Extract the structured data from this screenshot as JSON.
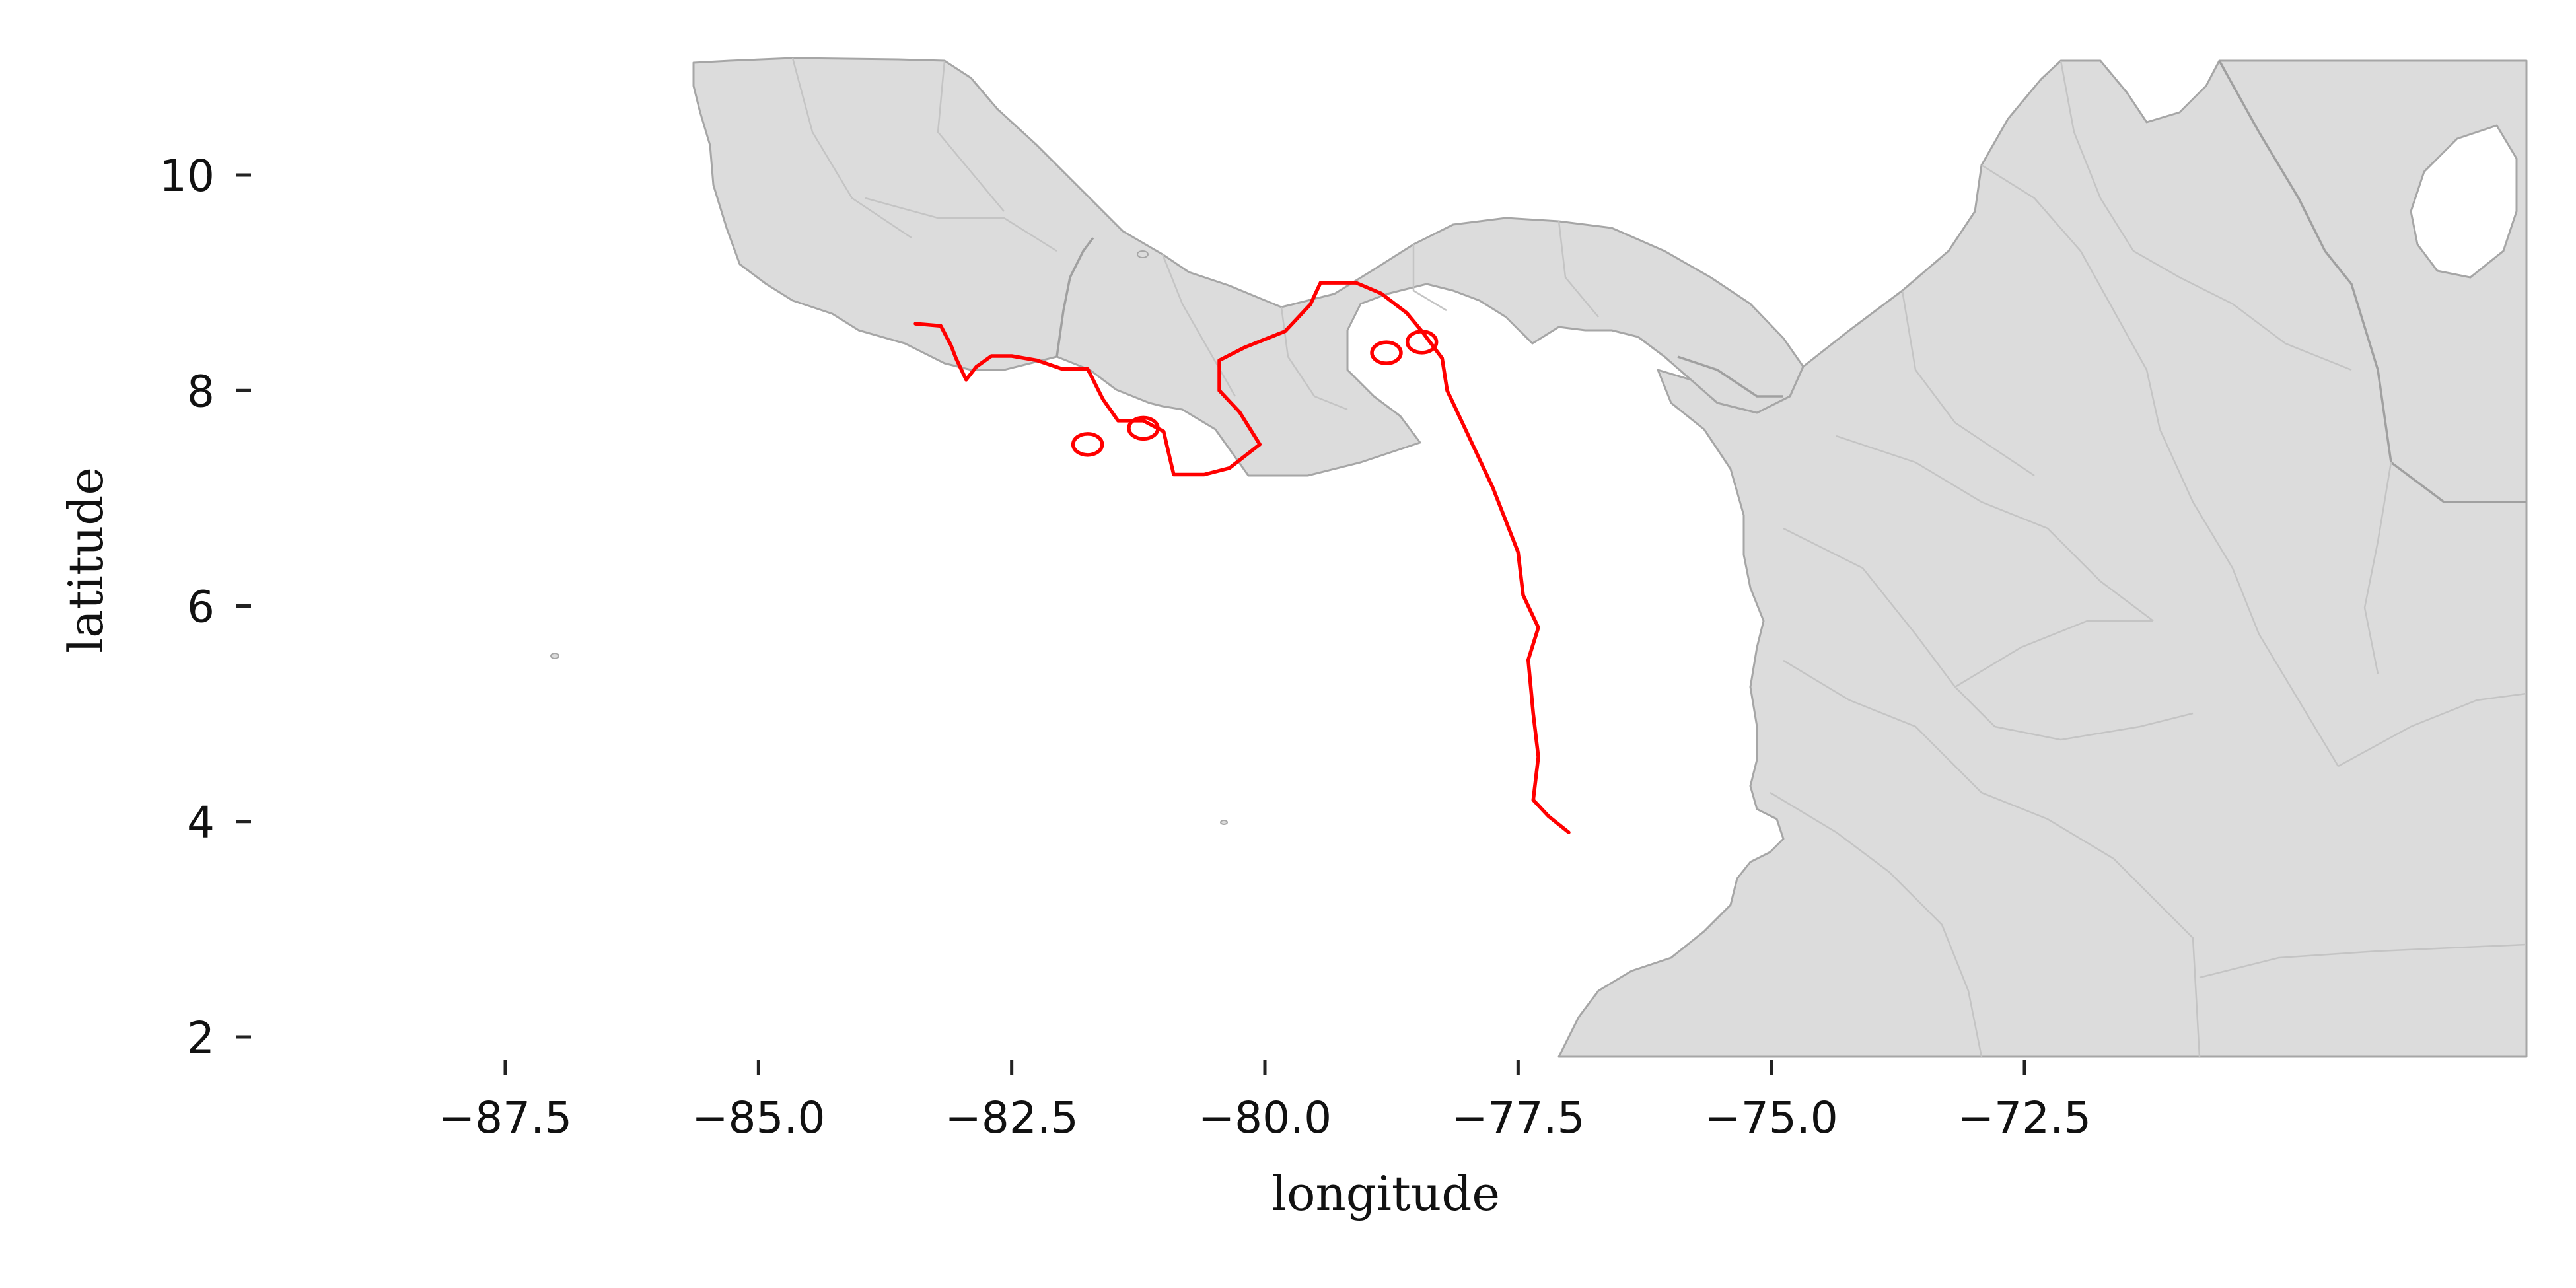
{
  "chart_data": {
    "type": "map",
    "xlabel": "longitude",
    "ylabel": "latitude",
    "xlim": [
      -89.5,
      -71.3
    ],
    "ylim": [
      1.8,
      11.1
    ],
    "x_ticks": [
      -87.5,
      -85.0,
      -82.5,
      -80.0,
      -77.5,
      -75.0,
      -72.5
    ],
    "x_tick_labels": [
      "−87.5",
      "−85.0",
      "−82.5",
      "−80.0",
      "−77.5",
      "−75.0",
      "−72.5"
    ],
    "y_ticks": [
      2,
      4,
      6,
      8,
      10
    ],
    "y_tick_labels": [
      "2",
      "4",
      "6",
      "8",
      "10"
    ],
    "grid": false,
    "basemap": "land with administrative borders",
    "highlight": {
      "type": "outline",
      "color": "#ff0000",
      "path_lonlat": [
        [
          -83.45,
          8.62
        ],
        [
          -83.2,
          8.6
        ],
        [
          -83.1,
          8.42
        ],
        [
          -83.05,
          8.3
        ],
        [
          -82.95,
          8.1
        ],
        [
          -82.85,
          8.22
        ],
        [
          -82.7,
          8.32
        ],
        [
          -82.5,
          8.32
        ],
        [
          -82.25,
          8.28
        ],
        [
          -82.0,
          8.2
        ],
        [
          -81.75,
          8.2
        ],
        [
          -81.6,
          7.92
        ],
        [
          -81.45,
          7.72
        ],
        [
          -81.2,
          7.72
        ],
        [
          -81.0,
          7.62
        ],
        [
          -80.95,
          7.42
        ],
        [
          -80.9,
          7.22
        ],
        [
          -80.6,
          7.22
        ],
        [
          -80.35,
          7.28
        ],
        [
          -80.05,
          7.5
        ],
        [
          -80.25,
          7.8
        ],
        [
          -80.45,
          8.0
        ],
        [
          -80.45,
          8.28
        ],
        [
          -80.2,
          8.4
        ],
        [
          -79.8,
          8.55
        ],
        [
          -79.55,
          8.8
        ],
        [
          -79.45,
          9.0
        ],
        [
          -79.1,
          9.0
        ],
        [
          -78.85,
          8.9
        ],
        [
          -78.6,
          8.72
        ],
        [
          -78.45,
          8.55
        ],
        [
          -78.25,
          8.3
        ],
        [
          -78.2,
          8.0
        ],
        [
          -78.0,
          7.6
        ],
        [
          -77.75,
          7.1
        ],
        [
          -77.5,
          6.5
        ],
        [
          -77.45,
          6.1
        ],
        [
          -77.3,
          5.8
        ],
        [
          -77.4,
          5.5
        ],
        [
          -77.35,
          5.0
        ],
        [
          -77.3,
          4.6
        ],
        [
          -77.35,
          4.2
        ],
        [
          -77.2,
          4.05
        ],
        [
          -77.0,
          3.9
        ]
      ],
      "islands_lonlat": [
        [
          -81.75,
          7.5
        ],
        [
          -81.2,
          7.65
        ],
        [
          -78.8,
          8.35
        ],
        [
          -78.45,
          8.45
        ]
      ]
    }
  }
}
